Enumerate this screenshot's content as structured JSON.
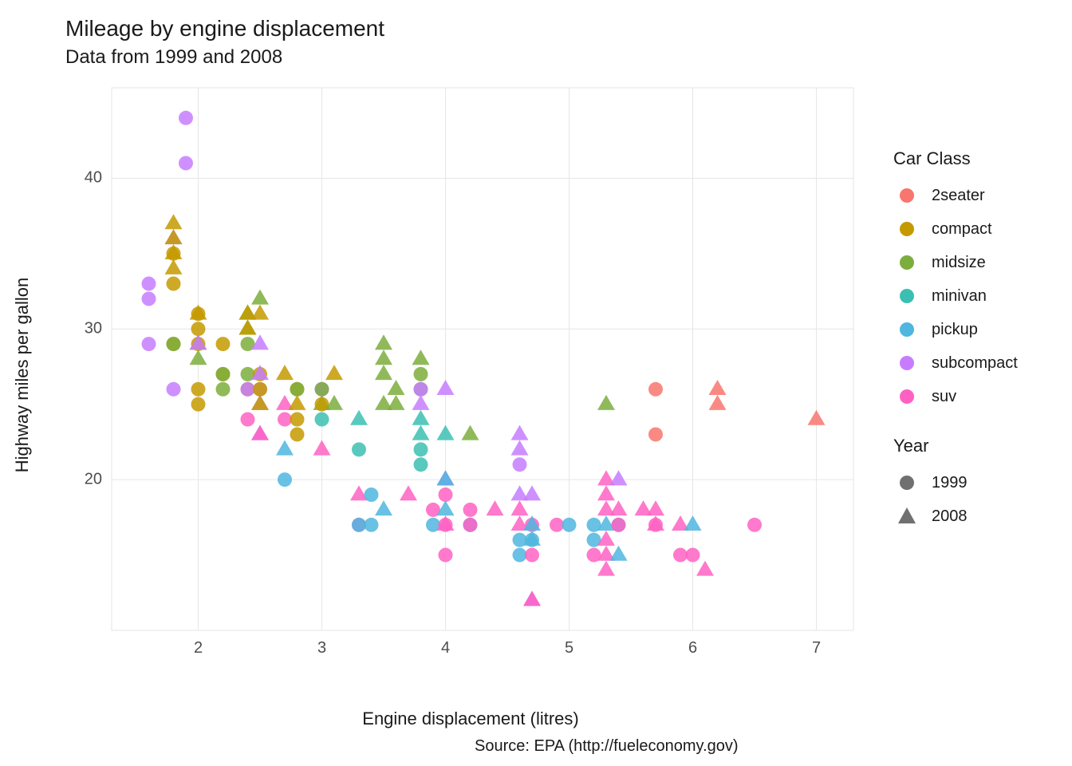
{
  "chart": {
    "type": "scatter",
    "title": "Mileage by engine displacement",
    "subtitle": "Data from 1999 and 2008",
    "xlabel": "Engine displacement (litres)",
    "ylabel": "Highway miles per gallon",
    "caption": "Source: EPA (http://fueleconomy.gov)",
    "background_color": "#ffffff",
    "panel_background_color": "#ffffff",
    "grid_color": "#e6e6e6",
    "axis_text_color": "#4d4d4d",
    "title_fontsize": 28,
    "subtitle_fontsize": 24,
    "axis_label_fontsize": 22,
    "tick_fontsize": 20,
    "legend_fontsize": 20,
    "legend_title_fontsize": 22,
    "point_radius": 9,
    "triangle_size": 22,
    "xlim": [
      1.3,
      7.3
    ],
    "ylim": [
      10,
      46
    ],
    "xticks": [
      2,
      3,
      4,
      5,
      6,
      7
    ],
    "yticks": [
      20,
      30,
      40
    ],
    "legend_class_title": "Car Class",
    "legend_year_title": "Year",
    "legend_year_color": "#707070",
    "classes": {
      "2seater": {
        "label": "2seater",
        "color": "#f8766d"
      },
      "compact": {
        "label": "compact",
        "color": "#c49a00"
      },
      "midsize": {
        "label": "midsize",
        "color": "#7cae3d"
      },
      "minivan": {
        "label": "minivan",
        "color": "#3cbfb3"
      },
      "pickup": {
        "label": "pickup",
        "color": "#4fb6df"
      },
      "subcompact": {
        "label": "subcompact",
        "color": "#c77cff"
      },
      "suv": {
        "label": "suv",
        "color": "#ff61c3"
      }
    },
    "years": {
      "1999": {
        "label": "1999",
        "shape": "circle"
      },
      "2008": {
        "label": "2008",
        "shape": "triangle"
      }
    },
    "points": [
      {
        "x": 1.6,
        "y": 33,
        "c": "subcompact",
        "s": "circle"
      },
      {
        "x": 1.6,
        "y": 32,
        "c": "subcompact",
        "s": "circle"
      },
      {
        "x": 1.6,
        "y": 29,
        "c": "subcompact",
        "s": "circle"
      },
      {
        "x": 1.8,
        "y": 29,
        "c": "compact",
        "s": "circle"
      },
      {
        "x": 1.8,
        "y": 29,
        "c": "midsize",
        "s": "circle"
      },
      {
        "x": 1.8,
        "y": 26,
        "c": "subcompact",
        "s": "circle"
      },
      {
        "x": 1.8,
        "y": 37,
        "c": "compact",
        "s": "triangle"
      },
      {
        "x": 1.8,
        "y": 36,
        "c": "subcompact",
        "s": "triangle"
      },
      {
        "x": 1.8,
        "y": 36,
        "c": "compact",
        "s": "triangle"
      },
      {
        "x": 1.8,
        "y": 35,
        "c": "compact",
        "s": "circle"
      },
      {
        "x": 1.8,
        "y": 35,
        "c": "compact",
        "s": "triangle"
      },
      {
        "x": 1.8,
        "y": 34,
        "c": "compact",
        "s": "triangle"
      },
      {
        "x": 1.8,
        "y": 33,
        "c": "compact",
        "s": "circle"
      },
      {
        "x": 1.9,
        "y": 44,
        "c": "subcompact",
        "s": "circle"
      },
      {
        "x": 1.9,
        "y": 41,
        "c": "subcompact",
        "s": "circle"
      },
      {
        "x": 2.0,
        "y": 31,
        "c": "compact",
        "s": "circle"
      },
      {
        "x": 2.0,
        "y": 31,
        "c": "compact",
        "s": "triangle"
      },
      {
        "x": 2.0,
        "y": 30,
        "c": "compact",
        "s": "circle"
      },
      {
        "x": 2.0,
        "y": 29,
        "c": "compact",
        "s": "circle"
      },
      {
        "x": 2.0,
        "y": 29,
        "c": "compact",
        "s": "triangle"
      },
      {
        "x": 2.0,
        "y": 29,
        "c": "subcompact",
        "s": "triangle"
      },
      {
        "x": 2.0,
        "y": 28,
        "c": "midsize",
        "s": "triangle"
      },
      {
        "x": 2.0,
        "y": 26,
        "c": "compact",
        "s": "circle"
      },
      {
        "x": 2.0,
        "y": 25,
        "c": "compact",
        "s": "circle"
      },
      {
        "x": 2.2,
        "y": 29,
        "c": "compact",
        "s": "circle"
      },
      {
        "x": 2.2,
        "y": 27,
        "c": "compact",
        "s": "circle"
      },
      {
        "x": 2.2,
        "y": 27,
        "c": "midsize",
        "s": "circle"
      },
      {
        "x": 2.2,
        "y": 26,
        "c": "midsize",
        "s": "circle"
      },
      {
        "x": 2.4,
        "y": 31,
        "c": "midsize",
        "s": "triangle"
      },
      {
        "x": 2.4,
        "y": 31,
        "c": "compact",
        "s": "triangle"
      },
      {
        "x": 2.4,
        "y": 30,
        "c": "midsize",
        "s": "triangle"
      },
      {
        "x": 2.4,
        "y": 30,
        "c": "compact",
        "s": "triangle"
      },
      {
        "x": 2.4,
        "y": 29,
        "c": "midsize",
        "s": "circle"
      },
      {
        "x": 2.4,
        "y": 27,
        "c": "midsize",
        "s": "circle"
      },
      {
        "x": 2.4,
        "y": 26,
        "c": "compact",
        "s": "circle"
      },
      {
        "x": 2.4,
        "y": 26,
        "c": "subcompact",
        "s": "circle"
      },
      {
        "x": 2.4,
        "y": 24,
        "c": "suv",
        "s": "circle"
      },
      {
        "x": 2.5,
        "y": 32,
        "c": "midsize",
        "s": "triangle"
      },
      {
        "x": 2.5,
        "y": 31,
        "c": "compact",
        "s": "triangle"
      },
      {
        "x": 2.5,
        "y": 29,
        "c": "subcompact",
        "s": "triangle"
      },
      {
        "x": 2.5,
        "y": 27,
        "c": "compact",
        "s": "circle"
      },
      {
        "x": 2.5,
        "y": 27,
        "c": "subcompact",
        "s": "triangle"
      },
      {
        "x": 2.5,
        "y": 26,
        "c": "subcompact",
        "s": "circle"
      },
      {
        "x": 2.5,
        "y": 26,
        "c": "compact",
        "s": "circle"
      },
      {
        "x": 2.5,
        "y": 25,
        "c": "subcompact",
        "s": "triangle"
      },
      {
        "x": 2.5,
        "y": 25,
        "c": "compact",
        "s": "triangle"
      },
      {
        "x": 2.5,
        "y": 23,
        "c": "subcompact",
        "s": "triangle"
      },
      {
        "x": 2.5,
        "y": 23,
        "c": "suv",
        "s": "triangle"
      },
      {
        "x": 2.7,
        "y": 27,
        "c": "compact",
        "s": "triangle"
      },
      {
        "x": 2.7,
        "y": 25,
        "c": "suv",
        "s": "triangle"
      },
      {
        "x": 2.7,
        "y": 24,
        "c": "suv",
        "s": "circle"
      },
      {
        "x": 2.7,
        "y": 22,
        "c": "pickup",
        "s": "triangle"
      },
      {
        "x": 2.7,
        "y": 20,
        "c": "pickup",
        "s": "circle"
      },
      {
        "x": 2.8,
        "y": 26,
        "c": "compact",
        "s": "circle"
      },
      {
        "x": 2.8,
        "y": 26,
        "c": "midsize",
        "s": "circle"
      },
      {
        "x": 2.8,
        "y": 25,
        "c": "compact",
        "s": "triangle"
      },
      {
        "x": 2.8,
        "y": 24,
        "c": "compact",
        "s": "circle"
      },
      {
        "x": 2.8,
        "y": 23,
        "c": "compact",
        "s": "circle"
      },
      {
        "x": 3.0,
        "y": 26,
        "c": "subcompact",
        "s": "circle"
      },
      {
        "x": 3.0,
        "y": 26,
        "c": "midsize",
        "s": "circle"
      },
      {
        "x": 3.0,
        "y": 25,
        "c": "midsize",
        "s": "triangle"
      },
      {
        "x": 3.0,
        "y": 25,
        "c": "compact",
        "s": "circle"
      },
      {
        "x": 3.0,
        "y": 24,
        "c": "minivan",
        "s": "circle"
      },
      {
        "x": 3.0,
        "y": 22,
        "c": "suv",
        "s": "triangle"
      },
      {
        "x": 3.1,
        "y": 27,
        "c": "compact",
        "s": "triangle"
      },
      {
        "x": 3.1,
        "y": 25,
        "c": "midsize",
        "s": "triangle"
      },
      {
        "x": 3.3,
        "y": 24,
        "c": "minivan",
        "s": "triangle"
      },
      {
        "x": 3.3,
        "y": 22,
        "c": "minivan",
        "s": "circle"
      },
      {
        "x": 3.3,
        "y": 19,
        "c": "suv",
        "s": "triangle"
      },
      {
        "x": 3.3,
        "y": 17,
        "c": "suv",
        "s": "circle"
      },
      {
        "x": 3.3,
        "y": 17,
        "c": "pickup",
        "s": "circle"
      },
      {
        "x": 3.4,
        "y": 19,
        "c": "pickup",
        "s": "circle"
      },
      {
        "x": 3.4,
        "y": 17,
        "c": "pickup",
        "s": "circle"
      },
      {
        "x": 3.5,
        "y": 29,
        "c": "midsize",
        "s": "triangle"
      },
      {
        "x": 3.5,
        "y": 28,
        "c": "midsize",
        "s": "triangle"
      },
      {
        "x": 3.5,
        "y": 27,
        "c": "midsize",
        "s": "triangle"
      },
      {
        "x": 3.5,
        "y": 25,
        "c": "midsize",
        "s": "triangle"
      },
      {
        "x": 3.5,
        "y": 18,
        "c": "pickup",
        "s": "triangle"
      },
      {
        "x": 3.6,
        "y": 26,
        "c": "midsize",
        "s": "triangle"
      },
      {
        "x": 3.6,
        "y": 25,
        "c": "midsize",
        "s": "triangle"
      },
      {
        "x": 3.7,
        "y": 19,
        "c": "suv",
        "s": "triangle"
      },
      {
        "x": 3.8,
        "y": 28,
        "c": "midsize",
        "s": "triangle"
      },
      {
        "x": 3.8,
        "y": 27,
        "c": "midsize",
        "s": "circle"
      },
      {
        "x": 3.8,
        "y": 26,
        "c": "midsize",
        "s": "circle"
      },
      {
        "x": 3.8,
        "y": 26,
        "c": "subcompact",
        "s": "circle"
      },
      {
        "x": 3.8,
        "y": 25,
        "c": "subcompact",
        "s": "triangle"
      },
      {
        "x": 3.8,
        "y": 24,
        "c": "minivan",
        "s": "triangle"
      },
      {
        "x": 3.8,
        "y": 23,
        "c": "minivan",
        "s": "triangle"
      },
      {
        "x": 3.8,
        "y": 22,
        "c": "minivan",
        "s": "circle"
      },
      {
        "x": 3.8,
        "y": 21,
        "c": "minivan",
        "s": "circle"
      },
      {
        "x": 3.9,
        "y": 18,
        "c": "suv",
        "s": "circle"
      },
      {
        "x": 3.9,
        "y": 17,
        "c": "pickup",
        "s": "circle"
      },
      {
        "x": 4.0,
        "y": 26,
        "c": "subcompact",
        "s": "triangle"
      },
      {
        "x": 4.0,
        "y": 23,
        "c": "minivan",
        "s": "triangle"
      },
      {
        "x": 4.0,
        "y": 20,
        "c": "subcompact",
        "s": "triangle"
      },
      {
        "x": 4.0,
        "y": 20,
        "c": "pickup",
        "s": "triangle"
      },
      {
        "x": 4.0,
        "y": 19,
        "c": "suv",
        "s": "circle"
      },
      {
        "x": 4.0,
        "y": 18,
        "c": "pickup",
        "s": "triangle"
      },
      {
        "x": 4.0,
        "y": 17,
        "c": "suv",
        "s": "circle"
      },
      {
        "x": 4.0,
        "y": 17,
        "c": "suv",
        "s": "triangle"
      },
      {
        "x": 4.0,
        "y": 15,
        "c": "suv",
        "s": "circle"
      },
      {
        "x": 4.2,
        "y": 23,
        "c": "midsize",
        "s": "triangle"
      },
      {
        "x": 4.2,
        "y": 18,
        "c": "suv",
        "s": "circle"
      },
      {
        "x": 4.2,
        "y": 17,
        "c": "pickup",
        "s": "circle"
      },
      {
        "x": 4.2,
        "y": 17,
        "c": "suv",
        "s": "circle"
      },
      {
        "x": 4.4,
        "y": 18,
        "c": "suv",
        "s": "triangle"
      },
      {
        "x": 4.6,
        "y": 23,
        "c": "subcompact",
        "s": "triangle"
      },
      {
        "x": 4.6,
        "y": 22,
        "c": "subcompact",
        "s": "triangle"
      },
      {
        "x": 4.6,
        "y": 21,
        "c": "subcompact",
        "s": "circle"
      },
      {
        "x": 4.6,
        "y": 19,
        "c": "subcompact",
        "s": "triangle"
      },
      {
        "x": 4.6,
        "y": 18,
        "c": "suv",
        "s": "triangle"
      },
      {
        "x": 4.6,
        "y": 17,
        "c": "suv",
        "s": "triangle"
      },
      {
        "x": 4.6,
        "y": 16,
        "c": "pickup",
        "s": "circle"
      },
      {
        "x": 4.6,
        "y": 15,
        "c": "pickup",
        "s": "circle"
      },
      {
        "x": 4.7,
        "y": 19,
        "c": "subcompact",
        "s": "triangle"
      },
      {
        "x": 4.7,
        "y": 17,
        "c": "suv",
        "s": "circle"
      },
      {
        "x": 4.7,
        "y": 17,
        "c": "pickup",
        "s": "triangle"
      },
      {
        "x": 4.7,
        "y": 16,
        "c": "pickup",
        "s": "circle"
      },
      {
        "x": 4.7,
        "y": 16,
        "c": "pickup",
        "s": "triangle"
      },
      {
        "x": 4.7,
        "y": 15,
        "c": "suv",
        "s": "circle"
      },
      {
        "x": 4.7,
        "y": 12,
        "c": "subcompact",
        "s": "triangle"
      },
      {
        "x": 4.7,
        "y": 12,
        "c": "suv",
        "s": "triangle"
      },
      {
        "x": 4.9,
        "y": 17,
        "c": "suv",
        "s": "circle"
      },
      {
        "x": 5.0,
        "y": 17,
        "c": "pickup",
        "s": "circle"
      },
      {
        "x": 5.2,
        "y": 17,
        "c": "pickup",
        "s": "circle"
      },
      {
        "x": 5.2,
        "y": 16,
        "c": "pickup",
        "s": "circle"
      },
      {
        "x": 5.2,
        "y": 15,
        "c": "suv",
        "s": "circle"
      },
      {
        "x": 5.3,
        "y": 25,
        "c": "midsize",
        "s": "triangle"
      },
      {
        "x": 5.3,
        "y": 20,
        "c": "suv",
        "s": "triangle"
      },
      {
        "x": 5.3,
        "y": 19,
        "c": "suv",
        "s": "triangle"
      },
      {
        "x": 5.3,
        "y": 18,
        "c": "suv",
        "s": "triangle"
      },
      {
        "x": 5.3,
        "y": 17,
        "c": "pickup",
        "s": "triangle"
      },
      {
        "x": 5.3,
        "y": 16,
        "c": "suv",
        "s": "triangle"
      },
      {
        "x": 5.3,
        "y": 15,
        "c": "suv",
        "s": "triangle"
      },
      {
        "x": 5.3,
        "y": 14,
        "c": "suv",
        "s": "triangle"
      },
      {
        "x": 5.4,
        "y": 20,
        "c": "subcompact",
        "s": "triangle"
      },
      {
        "x": 5.4,
        "y": 18,
        "c": "suv",
        "s": "triangle"
      },
      {
        "x": 5.4,
        "y": 17,
        "c": "pickup",
        "s": "circle"
      },
      {
        "x": 5.4,
        "y": 17,
        "c": "suv",
        "s": "circle"
      },
      {
        "x": 5.4,
        "y": 15,
        "c": "pickup",
        "s": "triangle"
      },
      {
        "x": 5.6,
        "y": 18,
        "c": "suv",
        "s": "triangle"
      },
      {
        "x": 5.7,
        "y": 26,
        "c": "2seater",
        "s": "circle"
      },
      {
        "x": 5.7,
        "y": 23,
        "c": "2seater",
        "s": "circle"
      },
      {
        "x": 5.7,
        "y": 18,
        "c": "suv",
        "s": "triangle"
      },
      {
        "x": 5.7,
        "y": 17,
        "c": "suv",
        "s": "circle"
      },
      {
        "x": 5.7,
        "y": 17,
        "c": "suv",
        "s": "triangle"
      },
      {
        "x": 5.9,
        "y": 15,
        "c": "suv",
        "s": "circle"
      },
      {
        "x": 5.9,
        "y": 17,
        "c": "suv",
        "s": "triangle"
      },
      {
        "x": 6.0,
        "y": 17,
        "c": "pickup",
        "s": "triangle"
      },
      {
        "x": 6.0,
        "y": 15,
        "c": "suv",
        "s": "circle"
      },
      {
        "x": 6.1,
        "y": 14,
        "c": "suv",
        "s": "triangle"
      },
      {
        "x": 6.2,
        "y": 26,
        "c": "2seater",
        "s": "triangle"
      },
      {
        "x": 6.2,
        "y": 25,
        "c": "2seater",
        "s": "triangle"
      },
      {
        "x": 6.5,
        "y": 17,
        "c": "suv",
        "s": "circle"
      },
      {
        "x": 7.0,
        "y": 24,
        "c": "2seater",
        "s": "triangle"
      }
    ]
  }
}
